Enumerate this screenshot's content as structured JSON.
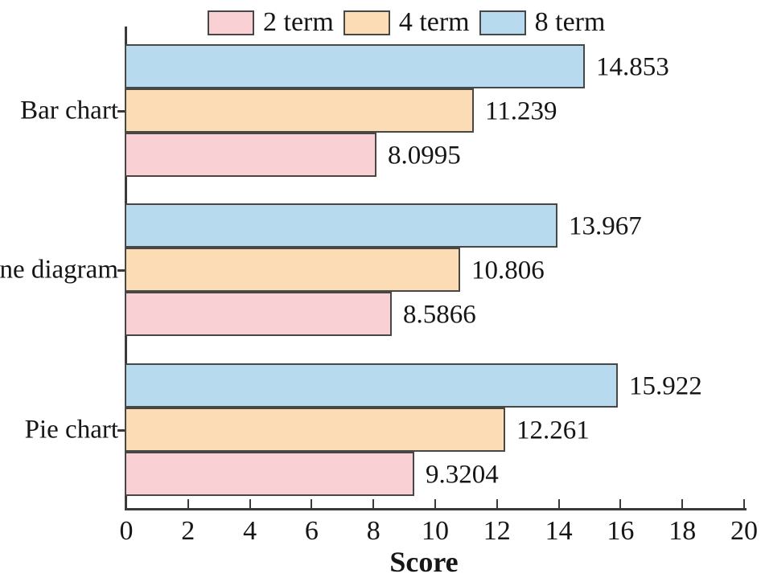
{
  "chart_data": {
    "type": "bar",
    "orientation": "horizontal",
    "title": "",
    "xlabel": "Score",
    "ylabel": "",
    "xlim": [
      0,
      20
    ],
    "x_ticks": [
      0,
      2,
      4,
      6,
      8,
      10,
      12,
      14,
      16,
      18,
      20
    ],
    "grid": false,
    "legend_position": "top",
    "categories": [
      "Bar chart",
      "ne diagram",
      "Pie chart"
    ],
    "series": [
      {
        "name": "2 term",
        "color": "#f9d1d5",
        "values": [
          8.0995,
          8.5866,
          9.3204
        ],
        "labels": [
          "8.0995",
          "8.5866",
          "9.3204"
        ]
      },
      {
        "name": "4 term",
        "color": "#fcdcb4",
        "values": [
          11.239,
          10.806,
          12.261
        ],
        "labels": [
          "11.239",
          "10.806",
          "12.261"
        ]
      },
      {
        "name": "8 term",
        "color": "#b7daef",
        "values": [
          14.853,
          13.967,
          15.922
        ],
        "labels": [
          "14.853",
          "13.967",
          "15.922"
        ]
      }
    ],
    "bar_border_color": "#474745",
    "axis_color": "#3a3a3a",
    "text_color": "#161616"
  }
}
